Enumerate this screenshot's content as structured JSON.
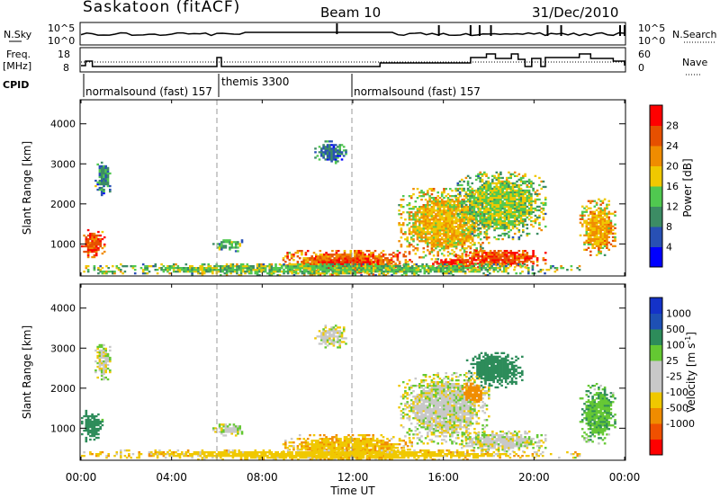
{
  "header": {
    "station": "Saskatoon (fitACF)",
    "beam": "Beam 10",
    "date": "31/Dec/2010"
  },
  "panels": {
    "sky": {
      "left_label": "N.Sky",
      "left_ticks": [
        "10^5",
        "10^0"
      ],
      "right_ticks": [
        "10^5",
        "10^0"
      ],
      "right_label": "N.Search"
    },
    "freq": {
      "left_label_line1": "Freq.",
      "left_label_line2": "[MHz]",
      "left_ticks": [
        "18",
        "8"
      ],
      "right_ticks": [
        "60",
        "0"
      ],
      "right_label": "Nave"
    },
    "cpid": {
      "label": "CPID",
      "segments": [
        "normalsound (fast) 157",
        "themis 3300",
        "normalsound (fast) 157"
      ]
    }
  },
  "time_axis": {
    "title": "Time UT",
    "ticks": [
      "00:00",
      "04:00",
      "08:00",
      "12:00",
      "16:00",
      "20:00",
      "00:00"
    ]
  },
  "colors": {
    "power": [
      "#0000ff",
      "#2850b4",
      "#3c8c64",
      "#50c850",
      "#f0c800",
      "#f08c00",
      "#e65000",
      "#ff0000"
    ],
    "velocity": [
      "#1432c8",
      "#1e50b4",
      "#2d8c5a",
      "#64c832",
      "#c8c8c8",
      "#c8c8c8",
      "#f0c800",
      "#f08c00",
      "#f05000",
      "#ff0000"
    ]
  },
  "chart_data": [
    {
      "type": "heatmap",
      "panel": "power",
      "xlabel": "Time UT",
      "ylabel": "Slant Range [km]",
      "xlim": [
        0,
        24
      ],
      "ylim": [
        200,
        4600
      ],
      "xticks": [
        "00:00",
        "04:00",
        "08:00",
        "12:00",
        "16:00",
        "20:00",
        "00:00"
      ],
      "yticks": [
        "1000",
        "2000",
        "3000",
        "4000"
      ],
      "colorbar": {
        "label": "Power [dB]",
        "ticks": [
          "4",
          "8",
          "12",
          "16",
          "20",
          "24",
          "28"
        ],
        "range": [
          0,
          32
        ]
      },
      "regions": [
        {
          "t": [
            0.0,
            1.0
          ],
          "r": [
            650,
            1350
          ],
          "value": 26
        },
        {
          "t": [
            0.6,
            1.3
          ],
          "r": [
            2200,
            3100
          ],
          "value": 10
        },
        {
          "t": [
            5.8,
            7.2
          ],
          "r": [
            800,
            1100
          ],
          "value": 12
        },
        {
          "t": [
            8.8,
            14.6
          ],
          "r": [
            220,
            850
          ],
          "value": 24
        },
        {
          "t": [
            10.0,
            13.2
          ],
          "r": [
            300,
            650
          ],
          "value": 29
        },
        {
          "t": [
            10.3,
            11.7
          ],
          "r": [
            3000,
            3550
          ],
          "value": 8
        },
        {
          "t": [
            14.0,
            18.0
          ],
          "r": [
            600,
            2400
          ],
          "value": 19
        },
        {
          "t": [
            15.5,
            17.6
          ],
          "r": [
            350,
            620
          ],
          "value": 30
        },
        {
          "t": [
            16.5,
            20.5
          ],
          "r": [
            400,
            850
          ],
          "value": 26
        },
        {
          "t": [
            16.5,
            20.5
          ],
          "r": [
            1100,
            2800
          ],
          "value": 15
        },
        {
          "t": [
            22.0,
            23.6
          ],
          "r": [
            700,
            2100
          ],
          "value": 20
        },
        {
          "t": [
            0.0,
            22.0
          ],
          "r": [
            200,
            500
          ],
          "value": 14
        }
      ]
    },
    {
      "type": "heatmap",
      "panel": "velocity",
      "xlabel": "Time UT",
      "ylabel": "Slant Range [km]",
      "xlim": [
        0,
        24
      ],
      "ylim": [
        200,
        4600
      ],
      "xticks": [
        "00:00",
        "04:00",
        "08:00",
        "12:00",
        "16:00",
        "20:00",
        "00:00"
      ],
      "yticks": [
        "1000",
        "2000",
        "3000",
        "4000"
      ],
      "colorbar": {
        "label": "Velocity [m s^-1]",
        "ticks": [
          "1000",
          "500",
          "100",
          "25",
          "-25",
          "-100",
          "-500",
          "-1000"
        ]
      },
      "regions": [
        {
          "t": [
            0.0,
            0.9
          ],
          "r": [
            650,
            1450
          ],
          "value": 150
        },
        {
          "t": [
            0.6,
            1.3
          ],
          "r": [
            2200,
            3100
          ],
          "value": 0
        },
        {
          "t": [
            5.8,
            7.2
          ],
          "r": [
            800,
            1100
          ],
          "value": 0
        },
        {
          "t": [
            8.8,
            14.6
          ],
          "r": [
            220,
            850
          ],
          "value": -80
        },
        {
          "t": [
            10.3,
            11.7
          ],
          "r": [
            3000,
            3550
          ],
          "value": 0
        },
        {
          "t": [
            14.0,
            18.0
          ],
          "r": [
            600,
            2400
          ],
          "value": 0
        },
        {
          "t": [
            16.8,
            17.8
          ],
          "r": [
            1600,
            2100
          ],
          "value": -300
        },
        {
          "t": [
            17.0,
            19.5
          ],
          "r": [
            2000,
            2900
          ],
          "value": 300
        },
        {
          "t": [
            16.5,
            20.5
          ],
          "r": [
            400,
            900
          ],
          "value": 0
        },
        {
          "t": [
            22.0,
            23.6
          ],
          "r": [
            600,
            2100
          ],
          "value": 80
        },
        {
          "t": [
            0.0,
            22.0
          ],
          "r": [
            200,
            450
          ],
          "value": -60
        }
      ]
    }
  ]
}
